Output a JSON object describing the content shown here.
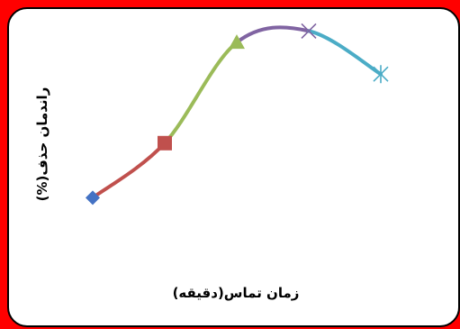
{
  "chart_data": {
    "type": "line",
    "title": "",
    "xlabel": "زمان تماس(دقیقه)",
    "ylabel": "راندمان حذف(%)",
    "grid": false,
    "legend": "none",
    "ylim": [
      0,
      100
    ],
    "xlim": [
      0,
      6
    ],
    "points": [
      {
        "x": 1,
        "y": 40,
        "marker": "diamond",
        "color": "#4472c4"
      },
      {
        "x": 2,
        "y": 59,
        "marker": "square",
        "color": "#c0504d"
      },
      {
        "x": 3,
        "y": 94,
        "marker": "triangle",
        "color": "#9bbb59"
      },
      {
        "x": 4,
        "y": 98,
        "marker": "x",
        "color": "#8064a2"
      },
      {
        "x": 5,
        "y": 83,
        "marker": "star",
        "color": "#4bacc6"
      }
    ],
    "segment_colors": [
      "#c0504d",
      "#9bbb59",
      "#8064a2",
      "#4bacc6"
    ]
  }
}
